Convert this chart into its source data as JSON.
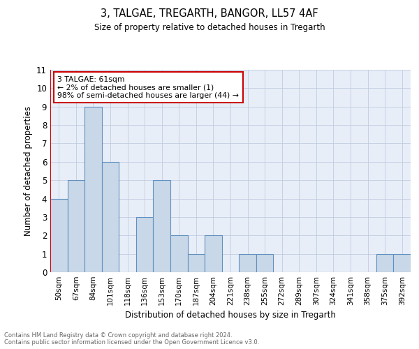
{
  "title": "3, TALGAE, TREGARTH, BANGOR, LL57 4AF",
  "subtitle": "Size of property relative to detached houses in Tregarth",
  "xlabel": "Distribution of detached houses by size in Tregarth",
  "ylabel": "Number of detached properties",
  "categories": [
    "50sqm",
    "67sqm",
    "84sqm",
    "101sqm",
    "118sqm",
    "136sqm",
    "153sqm",
    "170sqm",
    "187sqm",
    "204sqm",
    "221sqm",
    "238sqm",
    "255sqm",
    "272sqm",
    "289sqm",
    "307sqm",
    "324sqm",
    "341sqm",
    "358sqm",
    "375sqm",
    "392sqm"
  ],
  "values": [
    4,
    5,
    9,
    6,
    0,
    3,
    5,
    2,
    1,
    2,
    0,
    1,
    1,
    0,
    0,
    0,
    0,
    0,
    0,
    1,
    1
  ],
  "bar_color": "#c8d8e8",
  "bar_edge_color": "#6090c0",
  "grid_color": "#c0cce0",
  "background_color": "#e8eef8",
  "annotation_text": "3 TALGAE: 61sqm\n← 2% of detached houses are smaller (1)\n98% of semi-detached houses are larger (44) →",
  "ylim": [
    0,
    11
  ],
  "footer_line1": "Contains HM Land Registry data © Crown copyright and database right 2024.",
  "footer_line2": "Contains public sector information licensed under the Open Government Licence v3.0."
}
